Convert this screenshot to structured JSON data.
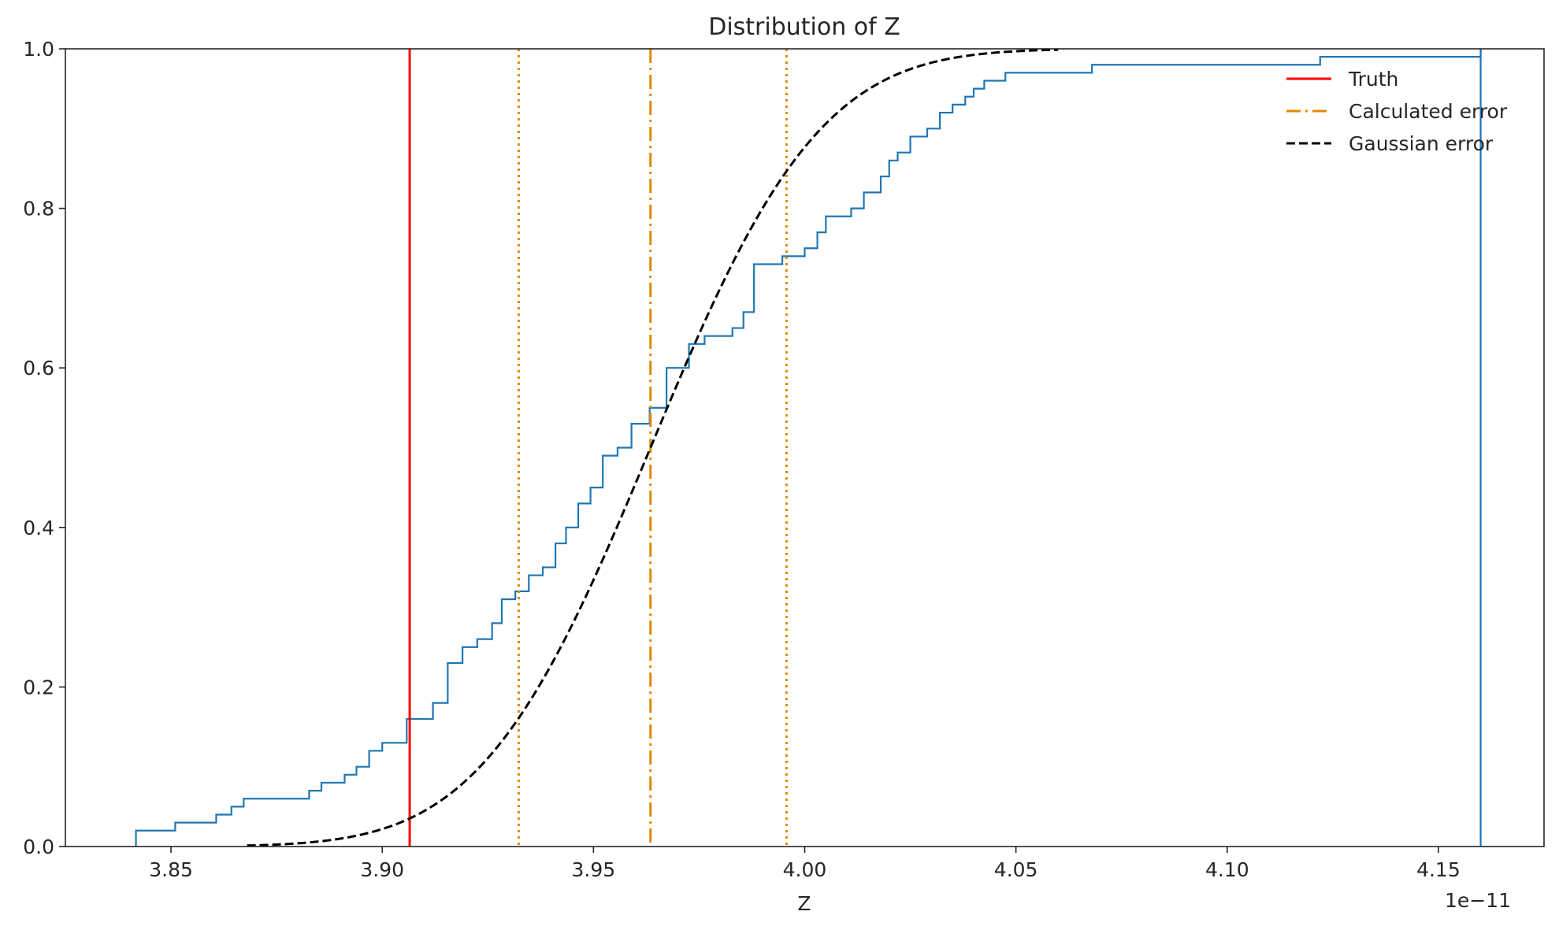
{
  "chart_data": {
    "type": "line",
    "title": "Distribution of Z",
    "xlabel": "Z",
    "ylabel": "",
    "x_offset_label": "1e−11",
    "x_unit_scale": 1e-11,
    "xlim": [
      3.825,
      4.175
    ],
    "ylim": [
      0,
      1
    ],
    "x_ticks": [
      3.85,
      3.9,
      3.95,
      4.0,
      4.05,
      4.1,
      4.15
    ],
    "x_tick_labels": [
      "3.85",
      "3.90",
      "3.95",
      "4.00",
      "4.05",
      "4.10",
      "4.15"
    ],
    "y_ticks": [
      0.0,
      0.2,
      0.4,
      0.6,
      0.8,
      1.0
    ],
    "y_tick_labels": [
      "0.0",
      "0.2",
      "0.4",
      "0.6",
      "0.8",
      "1.0"
    ],
    "grid": false,
    "legend_position": "top-right",
    "colors": {
      "ecdf": "#1f77b4",
      "truth": "#ff0000",
      "calculated": "#e08a00",
      "gaussian": "#000000"
    },
    "truth_x": 3.9065,
    "calculated_error": {
      "mean": 3.9635,
      "lower": 3.9323,
      "upper": 3.9957
    },
    "gaussian_error": {
      "mean": 3.9635,
      "sigma": 0.0315,
      "x_range": [
        3.868,
        4.06
      ]
    },
    "series": [
      {
        "name": "",
        "kind": "ecdf-step",
        "x": [
          3.8417,
          3.851,
          3.8607,
          3.8643,
          3.8672,
          3.8827,
          3.8856,
          3.8911,
          3.8939,
          3.8969,
          3.9,
          3.9058,
          3.912,
          3.9155,
          3.919,
          3.9225,
          3.926,
          3.9283,
          3.9315,
          3.9347,
          3.938,
          3.941,
          3.9435,
          3.9464,
          3.9493,
          3.9522,
          3.9557,
          3.959,
          3.9633,
          3.9673,
          3.9726,
          3.9763,
          3.9829,
          3.9855,
          3.988,
          3.9947,
          4.0,
          4.003,
          4.005,
          4.011,
          4.014,
          4.018,
          4.02,
          4.022,
          4.025,
          4.029,
          4.032,
          4.035,
          4.038,
          4.04,
          4.0425,
          4.0475,
          4.0525,
          4.0555,
          4.059,
          4.063,
          4.068,
          4.1025,
          4.122,
          4.16
        ],
        "y": [
          0.02,
          0.03,
          0.04,
          0.05,
          0.06,
          0.07,
          0.08,
          0.09,
          0.1,
          0.12,
          0.13,
          0.16,
          0.18,
          0.23,
          0.25,
          0.26,
          0.28,
          0.31,
          0.32,
          0.34,
          0.35,
          0.38,
          0.4,
          0.43,
          0.45,
          0.49,
          0.5,
          0.53,
          0.55,
          0.6,
          0.63,
          0.64,
          0.65,
          0.67,
          0.73,
          0.74,
          0.75,
          0.77,
          0.79,
          0.8,
          0.82,
          0.84,
          0.86,
          0.87,
          0.89,
          0.9,
          0.92,
          0.93,
          0.94,
          0.95,
          0.96,
          0.97,
          0.97,
          0.97,
          0.97,
          0.97,
          0.98,
          0.98,
          0.99,
          1.0
        ]
      }
    ],
    "legend": [
      {
        "label": "Truth",
        "style": "solid",
        "color": "#ff0000"
      },
      {
        "label": "Calculated error",
        "style": "dashdot",
        "color": "#e08a00"
      },
      {
        "label": "Gaussian error",
        "style": "dashed",
        "color": "#000000"
      }
    ]
  }
}
